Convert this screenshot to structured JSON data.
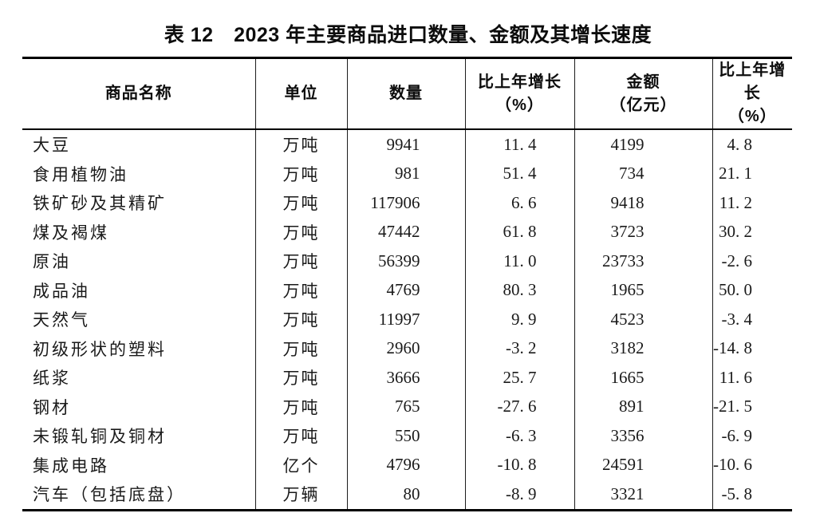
{
  "page": {
    "background": "#ffffff",
    "text_color": "#111111",
    "rule_color": "#000000"
  },
  "title": "表 12　2023 年主要商品进口数量、金额及其增长速度",
  "table": {
    "columns": [
      {
        "key": "name",
        "label": "商品名称",
        "label2": ""
      },
      {
        "key": "unit",
        "label": "单位",
        "label2": ""
      },
      {
        "key": "quantity",
        "label": "数量",
        "label2": ""
      },
      {
        "key": "quantity_growth",
        "label": "比上年增长",
        "label2": "（%）"
      },
      {
        "key": "amount",
        "label": "金额",
        "label2": "（亿元）"
      },
      {
        "key": "amount_growth",
        "label": "比上年增长",
        "label2": "（%）"
      }
    ],
    "rows": [
      {
        "name": "大豆",
        "unit": "万吨",
        "quantity": "9941",
        "quantity_growth": "11. 4",
        "amount": "4199",
        "amount_growth": "4. 8"
      },
      {
        "name": "食用植物油",
        "unit": "万吨",
        "quantity": "981",
        "quantity_growth": "51. 4",
        "amount": "734",
        "amount_growth": "21. 1"
      },
      {
        "name": "铁矿砂及其精矿",
        "unit": "万吨",
        "quantity": "117906",
        "quantity_growth": "6. 6",
        "amount": "9418",
        "amount_growth": "11. 2"
      },
      {
        "name": "煤及褐煤",
        "unit": "万吨",
        "quantity": "47442",
        "quantity_growth": "61. 8",
        "amount": "3723",
        "amount_growth": "30. 2"
      },
      {
        "name": "原油",
        "unit": "万吨",
        "quantity": "56399",
        "quantity_growth": "11. 0",
        "amount": "23733",
        "amount_growth": "-2. 6"
      },
      {
        "name": "成品油",
        "unit": "万吨",
        "quantity": "4769",
        "quantity_growth": "80. 3",
        "amount": "1965",
        "amount_growth": "50. 0"
      },
      {
        "name": "天然气",
        "unit": "万吨",
        "quantity": "11997",
        "quantity_growth": "9. 9",
        "amount": "4523",
        "amount_growth": "-3. 4"
      },
      {
        "name": "初级形状的塑料",
        "unit": "万吨",
        "quantity": "2960",
        "quantity_growth": "-3. 2",
        "amount": "3182",
        "amount_growth": "-14. 8"
      },
      {
        "name": "纸浆",
        "unit": "万吨",
        "quantity": "3666",
        "quantity_growth": "25. 7",
        "amount": "1665",
        "amount_growth": "11. 6"
      },
      {
        "name": "钢材",
        "unit": "万吨",
        "quantity": "765",
        "quantity_growth": "-27. 6",
        "amount": "891",
        "amount_growth": "-21. 5"
      },
      {
        "name": "未锻轧铜及铜材",
        "unit": "万吨",
        "quantity": "550",
        "quantity_growth": "-6. 3",
        "amount": "3356",
        "amount_growth": "-6. 9"
      },
      {
        "name": "集成电路",
        "unit": "亿个",
        "quantity": "4796",
        "quantity_growth": "-10. 8",
        "amount": "24591",
        "amount_growth": "-10. 6"
      },
      {
        "name": "汽车（包括底盘）",
        "unit": "万辆",
        "quantity": "80",
        "quantity_growth": "-8. 9",
        "amount": "3321",
        "amount_growth": "-5. 8"
      }
    ]
  }
}
